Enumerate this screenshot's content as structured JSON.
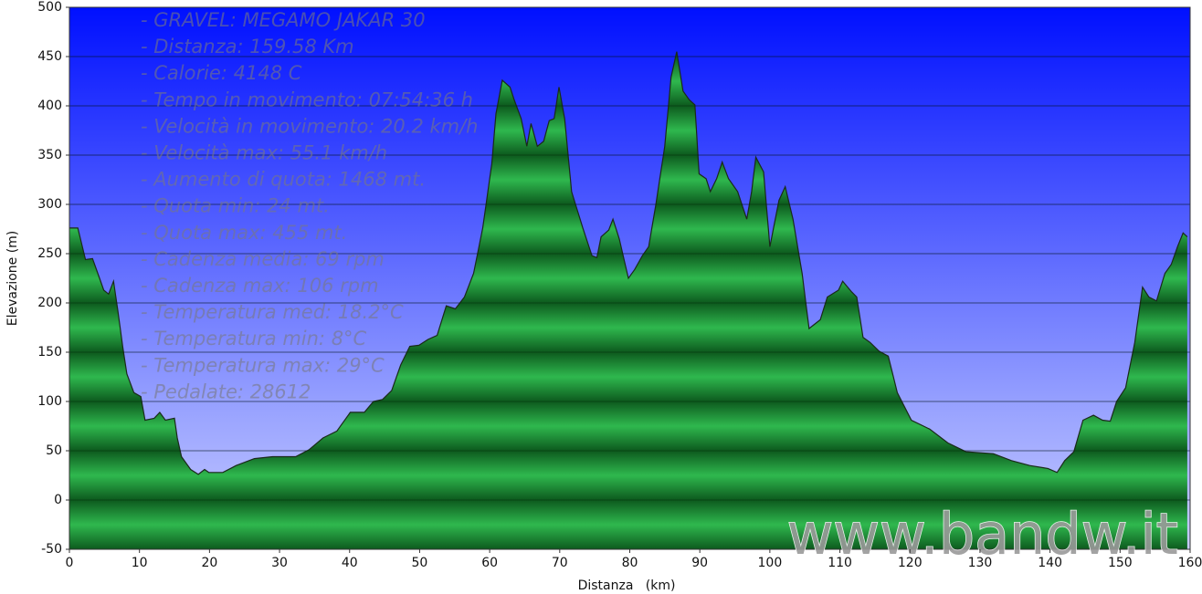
{
  "chart_data": {
    "type": "area",
    "x_label": "Distanza   (km)",
    "y_label": "Elevazione (m)",
    "annotations": [
      "- GRAVEL: MEGAMO JAKAR 30",
      "- Distanza: 159.58 Km",
      "- Calorie: 4148 C",
      "- Tempo in movimento: 07:54:36 h",
      "- Velocità in movimento: 20.2 km/h",
      "- Velocità max: 55.1 km/h",
      "- Aumento di quota: 1468 mt.",
      "- Quota min: 24 mt.",
      "- Quota max: 455 mt.",
      "- Cadenza media: 69 rpm",
      "- Cadenza max: 106 rpm",
      "- Temperatura med: 18.2°C",
      "- Temperatura min: 8°C",
      "- Temperatura max: 29°C",
      "- Pedalate: 28612"
    ],
    "watermark": "www.bandw.it",
    "color": "#2fb84e",
    "x": [
      0,
      1.2,
      2.3,
      3.3,
      4.3,
      4.9,
      5.6,
      6.3,
      6.9,
      7.6,
      8.2,
      9.2,
      10.2,
      10.8,
      12.1,
      12.9,
      13.7,
      15.0,
      15.4,
      16.0,
      17.3,
      18.4,
      19.3,
      19.9,
      21.9,
      23.8,
      26.4,
      29.0,
      32.3,
      34.2,
      36.2,
      38.2,
      40.1,
      42.1,
      43.4,
      44.7,
      46.0,
      47.3,
      48.6,
      49.9,
      51.2,
      52.5,
      53.8,
      55.1,
      56.4,
      57.7,
      59.0,
      60.3,
      60.9,
      61.8,
      62.9,
      63.5,
      64.5,
      65.3,
      65.9,
      66.8,
      67.7,
      68.5,
      69.2,
      69.9,
      70.7,
      71.7,
      73.3,
      74.6,
      75.3,
      75.9,
      77.0,
      77.6,
      78.5,
      79.8,
      80.7,
      81.8,
      82.7,
      83.7,
      85.0,
      85.9,
      86.7,
      87.6,
      88.5,
      89.3,
      89.9,
      90.9,
      91.5,
      92.4,
      93.2,
      94.1,
      95.4,
      96.7,
      97.4,
      98.0,
      99.1,
      100.0,
      101.3,
      102.2,
      103.3,
      104.6,
      105.6,
      107.2,
      108.2,
      109.8,
      110.4,
      111.7,
      112.4,
      113.3,
      114.3,
      115.6,
      116.9,
      118.2,
      120.2,
      122.8,
      125.4,
      128.0,
      131.9,
      134.5,
      137.1,
      139.7,
      141.0,
      142.1,
      143.4,
      144.7,
      146.2,
      147.5,
      148.6,
      149.5,
      150.8,
      152.1,
      153.2,
      154.1,
      155.2,
      156.4,
      157.3,
      158.2,
      159.0,
      159.6
    ],
    "values": [
      276,
      276,
      244,
      245,
      225,
      213,
      209,
      222,
      193,
      156,
      128,
      109,
      105,
      81,
      83,
      89,
      81,
      83,
      63,
      44,
      31,
      26,
      31,
      28,
      28,
      35,
      42,
      44,
      44,
      51,
      63,
      70,
      89,
      89,
      100,
      102,
      111,
      137,
      156,
      157,
      163,
      167,
      197,
      194,
      206,
      230,
      276,
      341,
      392,
      426,
      419,
      406,
      387,
      359,
      382,
      359,
      364,
      385,
      387,
      419,
      387,
      313,
      276,
      248,
      246,
      267,
      274,
      285,
      265,
      225,
      234,
      248,
      257,
      299,
      359,
      429,
      455,
      415,
      406,
      401,
      331,
      326,
      313,
      326,
      343,
      326,
      313,
      285,
      313,
      348,
      333,
      257,
      304,
      318,
      285,
      230,
      174,
      183,
      206,
      213,
      222,
      211,
      206,
      165,
      160,
      151,
      146,
      109,
      81,
      72,
      58,
      49,
      47,
      40,
      35,
      32,
      28,
      40,
      49,
      81,
      86,
      81,
      80,
      100,
      114,
      160,
      216,
      206,
      202,
      230,
      239,
      257,
      271,
      267
    ],
    "xlim": [
      0,
      160
    ],
    "ylim": [
      -50,
      500
    ],
    "xticks": [
      0,
      10,
      20,
      30,
      40,
      50,
      60,
      70,
      80,
      90,
      100,
      110,
      120,
      130,
      140,
      150,
      160
    ],
    "yticks": [
      -50,
      0,
      50,
      100,
      150,
      200,
      250,
      300,
      350,
      400,
      450,
      500
    ],
    "grid": true
  }
}
